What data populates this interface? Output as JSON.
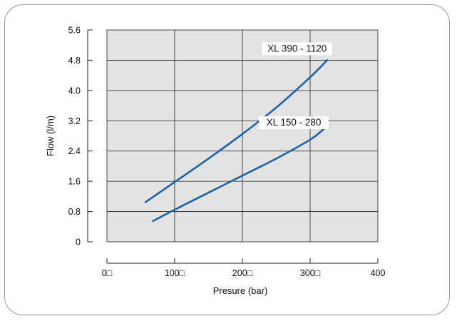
{
  "chart_data": {
    "type": "line",
    "xlabel": "Presure (bar)",
    "ylabel": "Flow (l/m)",
    "xlim": [
      0,
      400
    ],
    "ylim": [
      0,
      5.6
    ],
    "x_ticks": [
      0,
      100,
      200,
      300,
      400
    ],
    "x_tick_labels": [
      "0□",
      "100□",
      "200□",
      "300□",
      "400"
    ],
    "y_ticks": [
      0,
      0.8,
      1.6,
      2.4,
      3.2,
      4.0,
      4.8,
      5.6
    ],
    "y_tick_labels": [
      "0",
      "0.8",
      "1.6",
      "2.4",
      "3.2",
      "4.0",
      "4.8",
      "5.6"
    ],
    "grid": true,
    "plot_background": "#e3e3e3",
    "series": [
      {
        "name": "XL 390 - 1120",
        "color": "#1b63a8",
        "x": [
          57,
          100,
          150,
          200,
          250,
          300,
          325
        ],
        "y": [
          1.05,
          1.58,
          2.2,
          2.85,
          3.55,
          4.35,
          4.8
        ]
      },
      {
        "name": "XL 150 - 280",
        "color": "#1b63a8",
        "x": [
          68,
          100,
          150,
          200,
          250,
          300,
          320
        ],
        "y": [
          0.55,
          0.85,
          1.3,
          1.75,
          2.2,
          2.7,
          2.98
        ]
      }
    ]
  }
}
